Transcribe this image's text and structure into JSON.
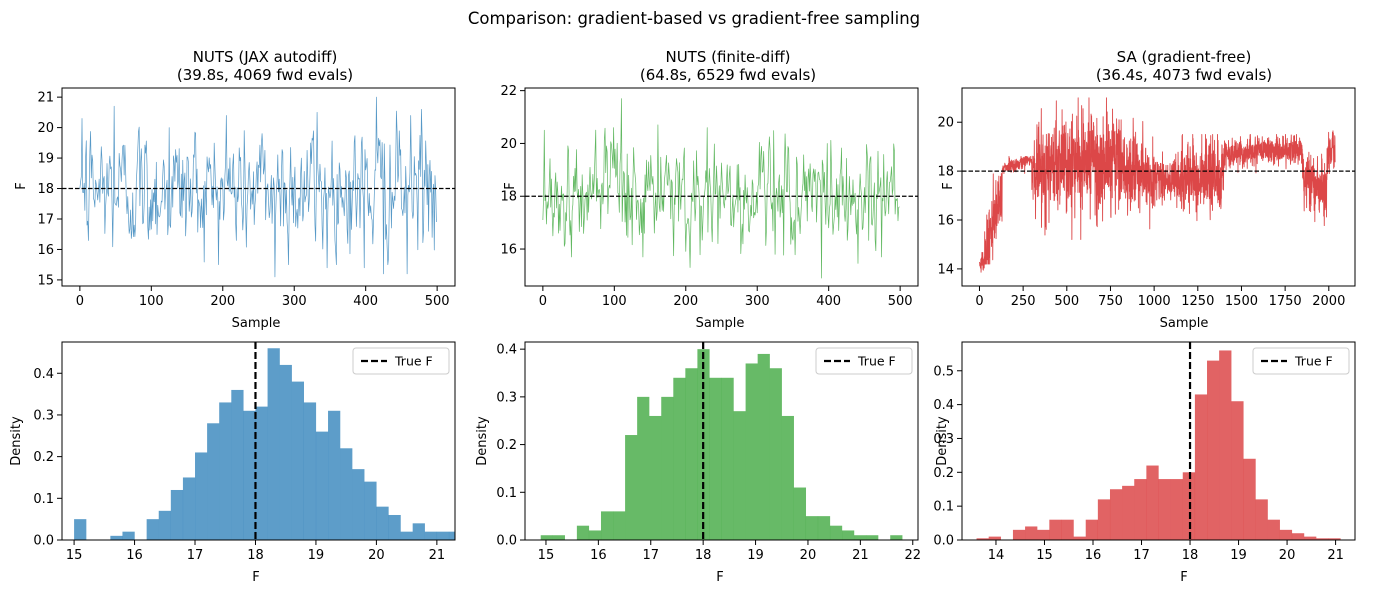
{
  "figure": {
    "suptitle": "Comparison: gradient-based vs gradient-free sampling"
  },
  "colors": {
    "nuts_jax": "#1f77b4",
    "nuts_fd": "#2ca02c",
    "sa": "#d62728",
    "reference": "#000000"
  },
  "chart_data": [
    {
      "id": "trace-nuts-jax",
      "type": "line",
      "title_line1": "NUTS (JAX autodiff)",
      "title_line2": "(39.8s, 4069 fwd evals)",
      "xlabel": "Sample",
      "ylabel": "F",
      "xlim": [
        -25,
        525
      ],
      "ylim": [
        14.8,
        21.3
      ],
      "xticks": [
        0,
        100,
        200,
        300,
        400,
        500
      ],
      "yticks": [
        15,
        16,
        17,
        18,
        19,
        20,
        21
      ],
      "reference_line": 18,
      "n_samples": 500,
      "color": "#1f77b4",
      "summary": {
        "mean": 18.0,
        "min": 15.1,
        "max": 21.0
      },
      "anchors": [
        {
          "x": 0,
          "y": 18.0
        },
        {
          "x": 3,
          "y": 20.3
        },
        {
          "x": 10,
          "y": 16.8
        },
        {
          "x": 48,
          "y": 20.7
        },
        {
          "x": 125,
          "y": 20.0
        },
        {
          "x": 205,
          "y": 20.4
        },
        {
          "x": 273,
          "y": 15.1
        },
        {
          "x": 332,
          "y": 20.5
        },
        {
          "x": 346,
          "y": 15.4
        },
        {
          "x": 398,
          "y": 15.4
        },
        {
          "x": 415,
          "y": 21.0
        },
        {
          "x": 425,
          "y": 15.2
        },
        {
          "x": 458,
          "y": 15.2
        },
        {
          "x": 478,
          "y": 20.6
        },
        {
          "x": 499,
          "y": 16.9
        }
      ]
    },
    {
      "id": "trace-nuts-fd",
      "type": "line",
      "title_line1": "NUTS (finite-diff)",
      "title_line2": "(64.8s, 6529 fwd evals)",
      "xlabel": "Sample",
      "ylabel": "F",
      "xlim": [
        -25,
        525
      ],
      "ylim": [
        14.6,
        22.1
      ],
      "xticks": [
        0,
        100,
        200,
        300,
        400,
        500
      ],
      "yticks": [
        16,
        18,
        20,
        22
      ],
      "reference_line": 18,
      "n_samples": 500,
      "color": "#2ca02c",
      "summary": {
        "mean": 18.0,
        "min": 14.9,
        "max": 21.7
      },
      "anchors": [
        {
          "x": 0,
          "y": 17.1
        },
        {
          "x": 2,
          "y": 20.5
        },
        {
          "x": 40,
          "y": 15.7
        },
        {
          "x": 110,
          "y": 21.7
        },
        {
          "x": 118,
          "y": 19.6
        },
        {
          "x": 140,
          "y": 15.7
        },
        {
          "x": 230,
          "y": 20.6
        },
        {
          "x": 325,
          "y": 15.8
        },
        {
          "x": 390,
          "y": 14.9
        },
        {
          "x": 398,
          "y": 20.0
        },
        {
          "x": 474,
          "y": 15.7
        },
        {
          "x": 499,
          "y": 17.6
        }
      ]
    },
    {
      "id": "trace-sa",
      "type": "line",
      "title_line1": "SA (gradient-free)",
      "title_line2": "(36.4s, 4073 fwd evals)",
      "xlabel": "Sample",
      "ylabel": "F",
      "xlim": [
        -100,
        2150
      ],
      "ylim": [
        13.3,
        21.4
      ],
      "xticks": [
        0,
        250,
        500,
        750,
        1000,
        1250,
        1500,
        1750,
        2000
      ],
      "yticks": [
        14,
        16,
        18,
        20
      ],
      "reference_line": 18,
      "n_samples": 2037,
      "color": "#d62728",
      "summary": {
        "mean": 17.9,
        "min": 13.6,
        "max": 21.0
      },
      "segments": [
        {
          "x0": 0,
          "x1": 30,
          "lo": 13.6,
          "hi": 14.8,
          "trend": [
            14.2,
            14.4
          ]
        },
        {
          "x0": 30,
          "x1": 130,
          "lo": 14.2,
          "hi": 17.9,
          "trend": [
            14.6,
            17.2
          ]
        },
        {
          "x0": 130,
          "x1": 300,
          "lo": 17.8,
          "hi": 18.6,
          "trend": [
            18.1,
            18.5
          ]
        },
        {
          "x0": 300,
          "x1": 800,
          "lo": 15.2,
          "hi": 21.0,
          "trend": [
            18.0,
            18.5
          ]
        },
        {
          "x0": 800,
          "x1": 1000,
          "lo": 15.5,
          "hi": 20.4,
          "trend": [
            18.2,
            17.6
          ]
        },
        {
          "x0": 1000,
          "x1": 1150,
          "lo": 16.4,
          "hi": 18.9,
          "trend": [
            17.8,
            17.6
          ]
        },
        {
          "x0": 1150,
          "x1": 1400,
          "lo": 15.3,
          "hi": 19.5,
          "trend": [
            17.6,
            17.9
          ]
        },
        {
          "x0": 1400,
          "x1": 1850,
          "lo": 17.9,
          "hi": 19.5,
          "trend": [
            18.7,
            18.9
          ]
        },
        {
          "x0": 1850,
          "x1": 1990,
          "lo": 15.7,
          "hi": 18.9,
          "trend": [
            17.7,
            17.2
          ]
        },
        {
          "x0": 1990,
          "x1": 2037,
          "lo": 17.9,
          "hi": 20.8,
          "trend": [
            18.6,
            19.0
          ]
        }
      ]
    },
    {
      "id": "hist-nuts-jax",
      "type": "bar",
      "subtype": "histogram",
      "xlabel": "F",
      "ylabel": "Density",
      "xlim": [
        14.8,
        21.3
      ],
      "ylim": [
        0,
        0.475
      ],
      "xticks": [
        15,
        16,
        17,
        18,
        19,
        20,
        21
      ],
      "yticks": [
        0.0,
        0.1,
        0.2,
        0.3,
        0.4
      ],
      "ytick_labels": [
        "0.0",
        "0.1",
        "0.2",
        "0.3",
        "0.4"
      ],
      "bin_start": 15.0,
      "bin_width": 0.2,
      "density": [
        0.05,
        0,
        0,
        0.01,
        0.02,
        0,
        0.05,
        0.07,
        0.12,
        0.15,
        0.21,
        0.28,
        0.33,
        0.36,
        0.31,
        0.32,
        0.46,
        0.42,
        0.38,
        0.33,
        0.26,
        0.31,
        0.22,
        0.17,
        0.14,
        0.08,
        0.06,
        0.02,
        0.04,
        0.02,
        0.02,
        0.02
      ],
      "reference_line": 18,
      "legend": {
        "label": "True F",
        "position": "top-right"
      },
      "color": "#1f77b4"
    },
    {
      "id": "hist-nuts-fd",
      "type": "bar",
      "subtype": "histogram",
      "xlabel": "F",
      "ylabel": "Density",
      "xlim": [
        14.6,
        22.1
      ],
      "ylim": [
        0,
        0.415
      ],
      "xticks": [
        15,
        16,
        17,
        18,
        19,
        20,
        21,
        22
      ],
      "yticks": [
        0.0,
        0.1,
        0.2,
        0.3,
        0.4
      ],
      "ytick_labels": [
        "0.0",
        "0.1",
        "0.2",
        "0.3",
        "0.4"
      ],
      "bin_start": 14.9,
      "bin_width": 0.23,
      "density": [
        0.01,
        0.01,
        0,
        0.03,
        0.02,
        0.06,
        0.06,
        0.22,
        0.3,
        0.26,
        0.3,
        0.34,
        0.36,
        0.4,
        0.34,
        0.34,
        0.27,
        0.37,
        0.39,
        0.36,
        0.26,
        0.11,
        0.05,
        0.05,
        0.03,
        0.02,
        0.01,
        0.01,
        0,
        0.01
      ],
      "reference_line": 18,
      "legend": {
        "label": "True F",
        "position": "top-right"
      },
      "color": "#2ca02c"
    },
    {
      "id": "hist-sa",
      "type": "bar",
      "subtype": "histogram",
      "xlabel": "F",
      "ylabel": "Density",
      "xlim": [
        13.3,
        21.4
      ],
      "ylim": [
        0,
        0.585
      ],
      "xticks": [
        14,
        15,
        16,
        17,
        18,
        19,
        20,
        21
      ],
      "yticks": [
        0.0,
        0.1,
        0.2,
        0.3,
        0.4,
        0.5
      ],
      "ytick_labels": [
        "0.0",
        "0.1",
        "0.2",
        "0.3",
        "0.4",
        "0.5"
      ],
      "bin_start": 13.6,
      "bin_width": 0.25,
      "density": [
        0.005,
        0.01,
        0,
        0.03,
        0.04,
        0.03,
        0.06,
        0.06,
        0.01,
        0.06,
        0.12,
        0.15,
        0.16,
        0.18,
        0.22,
        0.18,
        0.18,
        0.2,
        0.43,
        0.53,
        0.56,
        0.41,
        0.24,
        0.12,
        0.06,
        0.03,
        0.02,
        0.01,
        0.005,
        0.005
      ],
      "reference_line": 18,
      "legend": {
        "label": "True F",
        "position": "top-right"
      },
      "color": "#d62728"
    }
  ]
}
